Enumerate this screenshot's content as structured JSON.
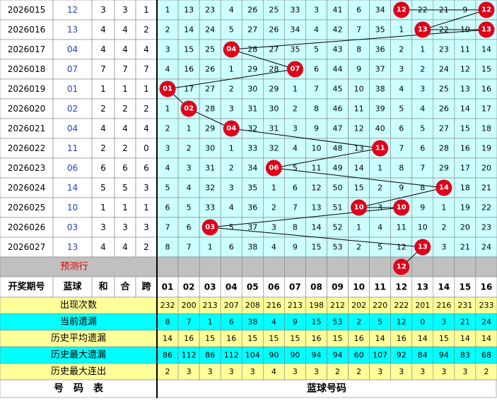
{
  "header": {
    "columns": [
      "开奖期号",
      "蓝球",
      "和",
      "合",
      "跨"
    ],
    "numbers": [
      "01",
      "02",
      "03",
      "04",
      "05",
      "06",
      "07",
      "08",
      "09",
      "10",
      "11",
      "12",
      "13",
      "14",
      "15",
      "16"
    ]
  },
  "rows": [
    {
      "period": "2026015",
      "blue": "12",
      "sum": "3",
      "he": "3",
      "kua": "1",
      "cells": [
        "1",
        "13",
        "23",
        "4",
        "26",
        "25",
        "33",
        "3",
        "41",
        "6",
        "34",
        "12",
        "22",
        "21",
        "9",
        "12"
      ]
    },
    {
      "period": "2026016",
      "blue": "13",
      "sum": "4",
      "he": "4",
      "kua": "2",
      "cells": [
        "2",
        "14",
        "24",
        "5",
        "27",
        "26",
        "34",
        "4",
        "42",
        "7",
        "35",
        "1",
        "13",
        "22",
        "10",
        "13"
      ]
    },
    {
      "period": "2026017",
      "blue": "04",
      "sum": "4",
      "he": "4",
      "kua": "4",
      "cells": [
        "3",
        "15",
        "25",
        "04",
        "28",
        "27",
        "35",
        "5",
        "43",
        "8",
        "36",
        "2",
        "1",
        "23",
        "11",
        "14"
      ]
    },
    {
      "period": "2026018",
      "blue": "07",
      "sum": "7",
      "he": "7",
      "kua": "7",
      "cells": [
        "4",
        "16",
        "26",
        "1",
        "29",
        "28",
        "07",
        "6",
        "44",
        "9",
        "37",
        "3",
        "2",
        "24",
        "12",
        "15"
      ]
    },
    {
      "period": "2026019",
      "blue": "01",
      "sum": "1",
      "he": "1",
      "kua": "1",
      "cells": [
        "01",
        "17",
        "27",
        "2",
        "30",
        "29",
        "1",
        "7",
        "45",
        "10",
        "38",
        "4",
        "3",
        "25",
        "13",
        "16"
      ]
    },
    {
      "period": "2026020",
      "blue": "02",
      "sum": "2",
      "he": "2",
      "kua": "2",
      "cells": [
        "1",
        "02",
        "28",
        "3",
        "31",
        "30",
        "2",
        "8",
        "46",
        "11",
        "39",
        "5",
        "4",
        "26",
        "14",
        "17"
      ]
    },
    {
      "period": "2026021",
      "blue": "04",
      "sum": "4",
      "he": "4",
      "kua": "4",
      "cells": [
        "2",
        "1",
        "29",
        "04",
        "32",
        "31",
        "3",
        "9",
        "47",
        "12",
        "40",
        "6",
        "5",
        "27",
        "15",
        "18"
      ]
    },
    {
      "period": "2026022",
      "blue": "11",
      "sum": "2",
      "he": "2",
      "kua": "0",
      "cells": [
        "3",
        "2",
        "30",
        "1",
        "33",
        "32",
        "4",
        "10",
        "48",
        "13",
        "11",
        "7",
        "6",
        "28",
        "16",
        "19"
      ]
    },
    {
      "period": "2026023",
      "blue": "06",
      "sum": "6",
      "he": "6",
      "kua": "6",
      "cells": [
        "4",
        "3",
        "31",
        "2",
        "34",
        "06",
        "5",
        "11",
        "49",
        "14",
        "1",
        "8",
        "7",
        "29",
        "17",
        "20"
      ]
    },
    {
      "period": "2026024",
      "blue": "14",
      "sum": "5",
      "he": "5",
      "kua": "3",
      "cells": [
        "5",
        "4",
        "32",
        "3",
        "35",
        "1",
        "6",
        "12",
        "50",
        "15",
        "2",
        "9",
        "8",
        "14",
        "18",
        "21"
      ]
    },
    {
      "period": "2026025",
      "blue": "10",
      "sum": "1",
      "he": "1",
      "kua": "1",
      "cells": [
        "6",
        "5",
        "33",
        "4",
        "36",
        "2",
        "7",
        "13",
        "51",
        "10",
        "3",
        "10",
        "9",
        "1",
        "19",
        "22"
      ]
    },
    {
      "period": "2026026",
      "blue": "03",
      "sum": "3",
      "he": "3",
      "kua": "3",
      "cells": [
        "7",
        "6",
        "03",
        "5",
        "37",
        "3",
        "8",
        "14",
        "52",
        "1",
        "4",
        "11",
        "10",
        "2",
        "20",
        "23"
      ]
    },
    {
      "period": "2026027",
      "blue": "13",
      "sum": "4",
      "he": "4",
      "kua": "2",
      "cells": [
        "8",
        "7",
        "1",
        "6",
        "38",
        "4",
        "9",
        "15",
        "53",
        "2",
        "5",
        "12",
        "13",
        "3",
        "21",
        "24"
      ]
    }
  ],
  "prediction": {
    "label": "预测行",
    "blue": "12"
  },
  "stats": [
    {
      "label": "出现次数",
      "values": [
        232,
        200,
        213,
        207,
        208,
        216,
        213,
        198,
        212,
        202,
        220,
        222,
        201,
        216,
        231,
        233
      ]
    },
    {
      "label": "当前遗漏",
      "values": [
        8,
        7,
        1,
        6,
        38,
        4,
        9,
        15,
        53,
        2,
        5,
        12,
        0,
        3,
        21,
        24
      ]
    },
    {
      "label": "历史平均遗漏",
      "values": [
        14,
        16,
        15,
        16,
        15,
        15,
        15,
        16,
        15,
        16,
        14,
        16,
        14,
        15,
        14,
        14
      ]
    },
    {
      "label": "历史最大遗漏",
      "values": [
        86,
        112,
        86,
        112,
        104,
        90,
        90,
        94,
        94,
        60,
        107,
        92,
        84,
        94,
        83,
        68
      ]
    },
    {
      "label": "历史最大连出",
      "values": [
        2,
        3,
        3,
        3,
        3,
        4,
        3,
        3,
        2,
        2,
        3,
        3,
        3,
        3,
        3,
        2
      ]
    }
  ],
  "footer": {
    "left": "号　码　表",
    "right": "蓝球号码"
  }
}
